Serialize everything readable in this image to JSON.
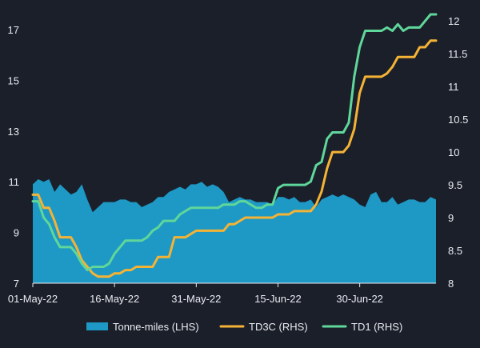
{
  "chart_data": {
    "type": "line",
    "x_tick_labels": [
      "01-May-22",
      "16-May-22",
      "31-May-22",
      "15-Jun-22",
      "30-Jun-22"
    ],
    "x_range": [
      "2022-05-01",
      "2022-07-14"
    ],
    "ylim_left": [
      7,
      17.6
    ],
    "ylim_right": [
      8,
      12.1
    ],
    "yticks_left": [
      "7",
      "9",
      "11",
      "13",
      "15",
      "17"
    ],
    "yticks_right": [
      "8",
      "8.5",
      "9",
      "9.5",
      "10",
      "10.5",
      "11",
      "11.5",
      "12"
    ],
    "grid": false,
    "legend_position": "bottom",
    "colors": {
      "background": "#1b1f2a",
      "tonne_miles": "#1e98c4",
      "td3c": "#f5b335",
      "td1": "#5fd79a",
      "text": "#e9ebef",
      "axis": "#e9ebef"
    },
    "series": [
      {
        "name": "Tonne-miles (LHS)",
        "axis": "left",
        "style": "area",
        "x": [
          "2022-05-01",
          "2022-05-02",
          "2022-05-03",
          "2022-05-04",
          "2022-05-05",
          "2022-05-06",
          "2022-05-07",
          "2022-05-08",
          "2022-05-09",
          "2022-05-10",
          "2022-05-11",
          "2022-05-12",
          "2022-05-13",
          "2022-05-14",
          "2022-05-15",
          "2022-05-16",
          "2022-05-17",
          "2022-05-18",
          "2022-05-19",
          "2022-05-20",
          "2022-05-21",
          "2022-05-22",
          "2022-05-23",
          "2022-05-24",
          "2022-05-25",
          "2022-05-26",
          "2022-05-27",
          "2022-05-28",
          "2022-05-29",
          "2022-05-30",
          "2022-05-31",
          "2022-06-01",
          "2022-06-02",
          "2022-06-03",
          "2022-06-04",
          "2022-06-05",
          "2022-06-06",
          "2022-06-07",
          "2022-06-08",
          "2022-06-09",
          "2022-06-10",
          "2022-06-11",
          "2022-06-12",
          "2022-06-13",
          "2022-06-14",
          "2022-06-15",
          "2022-06-16",
          "2022-06-17",
          "2022-06-18",
          "2022-06-19",
          "2022-06-20",
          "2022-06-21",
          "2022-06-22",
          "2022-06-23",
          "2022-06-24",
          "2022-06-25",
          "2022-06-26",
          "2022-06-27",
          "2022-06-28",
          "2022-06-29",
          "2022-06-30",
          "2022-07-01",
          "2022-07-02",
          "2022-07-03",
          "2022-07-04",
          "2022-07-05",
          "2022-07-06",
          "2022-07-07",
          "2022-07-08",
          "2022-07-09",
          "2022-07-10",
          "2022-07-11",
          "2022-07-12",
          "2022-07-13",
          "2022-07-14"
        ],
        "values": [
          10.9,
          11.1,
          11.0,
          11.1,
          10.6,
          10.9,
          10.7,
          10.5,
          10.6,
          10.9,
          10.3,
          9.8,
          10.0,
          10.2,
          10.2,
          10.2,
          10.3,
          10.3,
          10.2,
          10.2,
          10.0,
          10.1,
          10.2,
          10.4,
          10.4,
          10.6,
          10.7,
          10.8,
          10.7,
          10.9,
          10.9,
          11.0,
          10.8,
          10.9,
          10.8,
          10.6,
          10.2,
          10.3,
          10.4,
          10.3,
          10.3,
          10.2,
          10.2,
          10.2,
          10.1,
          10.4,
          10.4,
          10.3,
          10.4,
          10.2,
          10.2,
          10.3,
          10.0,
          10.3,
          10.4,
          10.5,
          10.4,
          10.5,
          10.4,
          10.3,
          10.1,
          10.0,
          10.5,
          10.6,
          10.2,
          10.2,
          10.4,
          10.1,
          10.2,
          10.3,
          10.3,
          10.2,
          10.2,
          10.4,
          10.3
        ]
      },
      {
        "name": "TD3C (RHS)",
        "axis": "right",
        "style": "line",
        "x": [
          "2022-05-01",
          "2022-05-02",
          "2022-05-03",
          "2022-05-04",
          "2022-05-05",
          "2022-05-06",
          "2022-05-07",
          "2022-05-08",
          "2022-05-09",
          "2022-05-10",
          "2022-05-11",
          "2022-05-12",
          "2022-05-13",
          "2022-05-14",
          "2022-05-15",
          "2022-05-16",
          "2022-05-17",
          "2022-05-18",
          "2022-05-19",
          "2022-05-20",
          "2022-05-21",
          "2022-05-22",
          "2022-05-23",
          "2022-05-24",
          "2022-05-25",
          "2022-05-26",
          "2022-05-27",
          "2022-05-28",
          "2022-05-29",
          "2022-05-30",
          "2022-05-31",
          "2022-06-01",
          "2022-06-02",
          "2022-06-03",
          "2022-06-04",
          "2022-06-05",
          "2022-06-06",
          "2022-06-07",
          "2022-06-08",
          "2022-06-09",
          "2022-06-10",
          "2022-06-11",
          "2022-06-12",
          "2022-06-13",
          "2022-06-14",
          "2022-06-15",
          "2022-06-16",
          "2022-06-17",
          "2022-06-18",
          "2022-06-19",
          "2022-06-20",
          "2022-06-21",
          "2022-06-22",
          "2022-06-23",
          "2022-06-24",
          "2022-06-25",
          "2022-06-26",
          "2022-06-27",
          "2022-06-28",
          "2022-06-29",
          "2022-06-30",
          "2022-07-01",
          "2022-07-02",
          "2022-07-03",
          "2022-07-04",
          "2022-07-05",
          "2022-07-06",
          "2022-07-07",
          "2022-07-08",
          "2022-07-09",
          "2022-07-10",
          "2022-07-11",
          "2022-07-12",
          "2022-07-13",
          "2022-07-14"
        ],
        "values": [
          9.35,
          9.35,
          9.15,
          9.15,
          8.95,
          8.7,
          8.7,
          8.7,
          8.55,
          8.35,
          8.25,
          8.15,
          8.1,
          8.1,
          8.1,
          8.15,
          8.15,
          8.2,
          8.2,
          8.25,
          8.25,
          8.25,
          8.25,
          8.4,
          8.4,
          8.4,
          8.7,
          8.7,
          8.7,
          8.75,
          8.8,
          8.8,
          8.8,
          8.8,
          8.8,
          8.8,
          8.9,
          8.9,
          8.95,
          9.0,
          9.0,
          9.0,
          9.0,
          9.0,
          9.0,
          9.05,
          9.05,
          9.05,
          9.1,
          9.1,
          9.1,
          9.1,
          9.2,
          9.4,
          9.75,
          10.0,
          10.0,
          10.0,
          10.1,
          10.35,
          10.9,
          11.15,
          11.15,
          11.15,
          11.15,
          11.2,
          11.3,
          11.45,
          11.45,
          11.45,
          11.45,
          11.6,
          11.6,
          11.7,
          11.7
        ]
      },
      {
        "name": "TD1 (RHS)",
        "axis": "right",
        "style": "line",
        "x": [
          "2022-05-01",
          "2022-05-02",
          "2022-05-03",
          "2022-05-04",
          "2022-05-05",
          "2022-05-06",
          "2022-05-07",
          "2022-05-08",
          "2022-05-09",
          "2022-05-10",
          "2022-05-11",
          "2022-05-12",
          "2022-05-13",
          "2022-05-14",
          "2022-05-15",
          "2022-05-16",
          "2022-05-17",
          "2022-05-18",
          "2022-05-19",
          "2022-05-20",
          "2022-05-21",
          "2022-05-22",
          "2022-05-23",
          "2022-05-24",
          "2022-05-25",
          "2022-05-26",
          "2022-05-27",
          "2022-05-28",
          "2022-05-29",
          "2022-05-30",
          "2022-05-31",
          "2022-06-01",
          "2022-06-02",
          "2022-06-03",
          "2022-06-04",
          "2022-06-05",
          "2022-06-06",
          "2022-06-07",
          "2022-06-08",
          "2022-06-09",
          "2022-06-10",
          "2022-06-11",
          "2022-06-12",
          "2022-06-13",
          "2022-06-14",
          "2022-06-15",
          "2022-06-16",
          "2022-06-17",
          "2022-06-18",
          "2022-06-19",
          "2022-06-20",
          "2022-06-21",
          "2022-06-22",
          "2022-06-23",
          "2022-06-24",
          "2022-06-25",
          "2022-06-26",
          "2022-06-27",
          "2022-06-28",
          "2022-06-29",
          "2022-06-30",
          "2022-07-01",
          "2022-07-02",
          "2022-07-03",
          "2022-07-04",
          "2022-07-05",
          "2022-07-06",
          "2022-07-07",
          "2022-07-08",
          "2022-07-09",
          "2022-07-10",
          "2022-07-11",
          "2022-07-12",
          "2022-07-13",
          "2022-07-14"
        ],
        "values": [
          9.25,
          9.25,
          9.0,
          8.9,
          8.7,
          8.55,
          8.55,
          8.55,
          8.45,
          8.3,
          8.2,
          8.25,
          8.25,
          8.25,
          8.3,
          8.45,
          8.55,
          8.65,
          8.65,
          8.65,
          8.65,
          8.7,
          8.8,
          8.85,
          8.95,
          8.95,
          8.95,
          9.05,
          9.1,
          9.15,
          9.15,
          9.15,
          9.15,
          9.15,
          9.15,
          9.2,
          9.2,
          9.2,
          9.25,
          9.25,
          9.2,
          9.15,
          9.15,
          9.2,
          9.2,
          9.45,
          9.5,
          9.5,
          9.5,
          9.5,
          9.5,
          9.55,
          9.8,
          9.85,
          10.2,
          10.3,
          10.3,
          10.3,
          10.45,
          11.15,
          11.6,
          11.85,
          11.85,
          11.85,
          11.85,
          11.9,
          11.85,
          11.95,
          11.85,
          11.9,
          11.9,
          11.9,
          12.0,
          12.1,
          12.1
        ]
      }
    ]
  }
}
